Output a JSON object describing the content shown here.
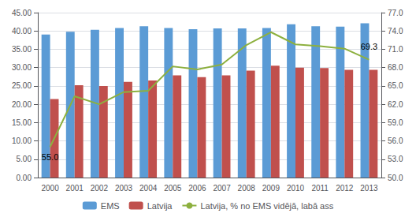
{
  "chart_data": {
    "type": "bar",
    "categories": [
      "2000",
      "2001",
      "2002",
      "2003",
      "2004",
      "2005",
      "2006",
      "2007",
      "2008",
      "2009",
      "2010",
      "2011",
      "2012",
      "2013"
    ],
    "series": [
      {
        "name": "EMS",
        "color": "#5B9BD5",
        "values": [
          39.0,
          39.8,
          40.3,
          40.8,
          41.3,
          40.8,
          40.5,
          40.7,
          40.7,
          40.8,
          41.8,
          41.3,
          41.2,
          42.1
        ]
      },
      {
        "name": "Latvija",
        "color": "#C0504D",
        "values": [
          21.4,
          25.2,
          25.0,
          26.1,
          26.5,
          27.9,
          27.4,
          27.9,
          29.2,
          30.5,
          30.0,
          29.9,
          29.4,
          29.4
        ]
      },
      {
        "name": "Latvija, % no EMS vidējā, labā ass",
        "type": "line",
        "axis": "y2",
        "color": "#8DB03F",
        "values": [
          55.0,
          63.3,
          62.0,
          64.0,
          64.2,
          68.2,
          67.7,
          68.5,
          71.7,
          73.8,
          71.8,
          71.5,
          71.1,
          69.3
        ]
      }
    ],
    "ylim": [
      0,
      45
    ],
    "yticks": [
      {
        "value": 0,
        "label": "0.00"
      },
      {
        "value": 5,
        "label": "5.00"
      },
      {
        "value": 10,
        "label": "10.00"
      },
      {
        "value": 15,
        "label": "15.00"
      },
      {
        "value": 20,
        "label": "20.00"
      },
      {
        "value": 25,
        "label": "25.00"
      },
      {
        "value": 30,
        "label": "30.00"
      },
      {
        "value": 35,
        "label": "35.00"
      },
      {
        "value": 40,
        "label": "40.00"
      },
      {
        "value": 45,
        "label": "45.00"
      }
    ],
    "y2lim": [
      50,
      77
    ],
    "y2ticks": [
      {
        "value": 50,
        "label": "50.0"
      },
      {
        "value": 53,
        "label": "53.0"
      },
      {
        "value": 56,
        "label": "56.0"
      },
      {
        "value": 59,
        "label": "59.0"
      },
      {
        "value": 62,
        "label": "62.0"
      },
      {
        "value": 65,
        "label": "65.0"
      },
      {
        "value": 68,
        "label": "68.0"
      },
      {
        "value": 71,
        "label": "71.0"
      },
      {
        "value": 74,
        "label": "74.0"
      },
      {
        "value": 77,
        "label": "77.0"
      }
    ],
    "grid": true,
    "legend": "bottom",
    "annotations": [
      {
        "text": "55.0",
        "x": "2000",
        "y": 55.0,
        "axis": "y2"
      },
      {
        "text": "69.3",
        "x": "2013",
        "y": 69.3,
        "axis": "y2"
      }
    ]
  }
}
